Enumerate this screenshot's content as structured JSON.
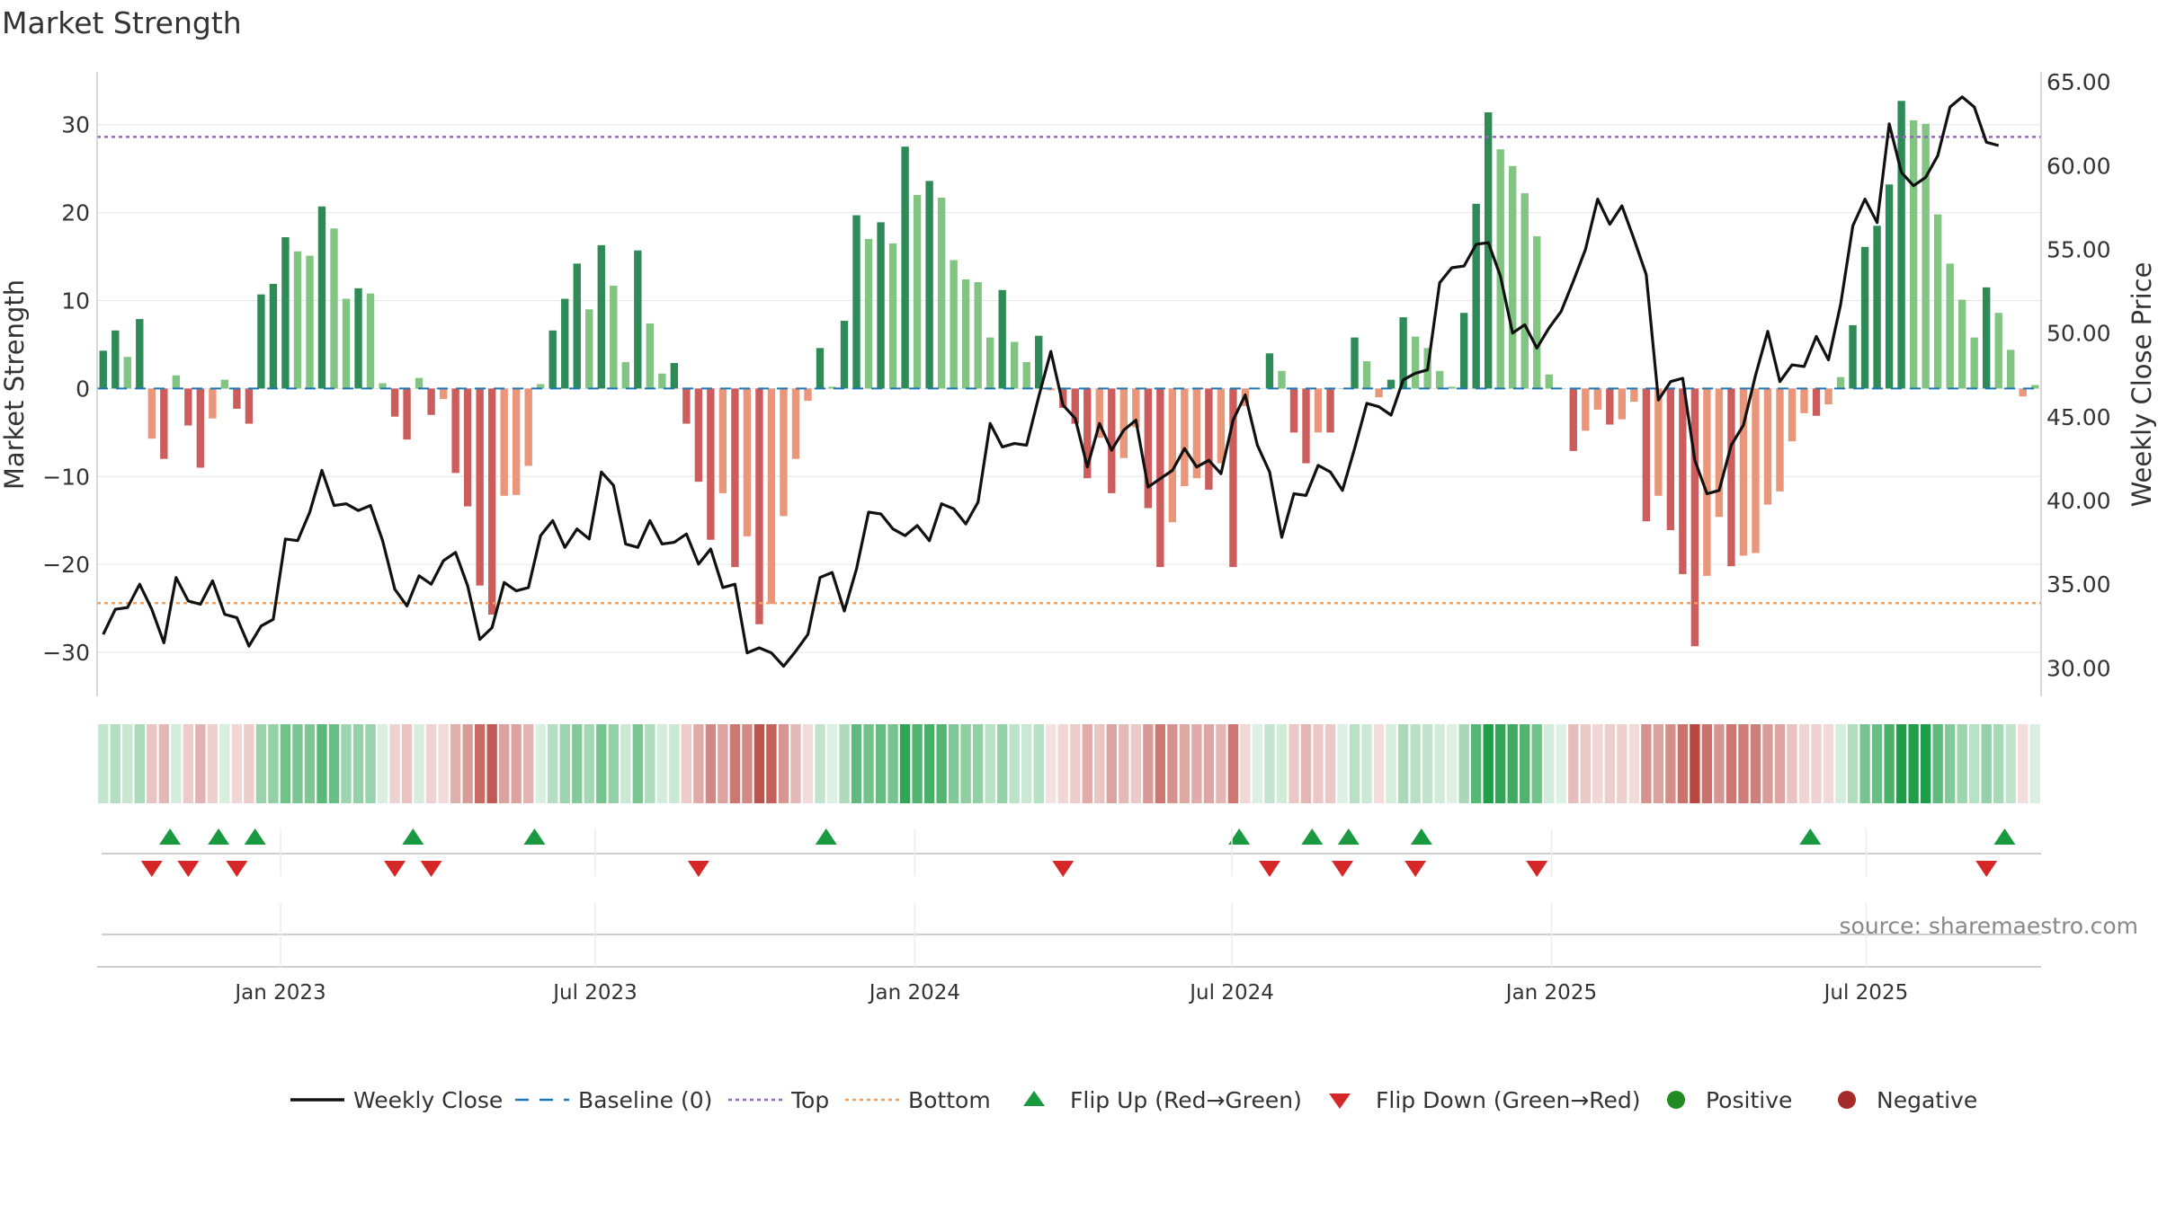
{
  "chart_data": {
    "type": "bar+line",
    "title": "Market Strength",
    "ylabel_left": "Market Strength",
    "ylabel_right": "Weekly Close Price",
    "source": "source: sharemaestro.com",
    "left_axis": {
      "ylim": [
        -35,
        36
      ],
      "ticks": [
        30,
        20,
        10,
        0,
        -10,
        -20,
        -30
      ],
      "tick_labels": [
        "30",
        "20",
        "10",
        "0",
        "−10",
        "−20",
        "−30"
      ]
    },
    "right_axis": {
      "ylim": [
        28.3,
        65.6
      ],
      "ticks": [
        65,
        60,
        55,
        50,
        45,
        40,
        35,
        30
      ],
      "tick_labels": [
        "65.00",
        "60.00",
        "55.00",
        "50.00",
        "45.00",
        "40.00",
        "35.00",
        "30.00"
      ]
    },
    "x_ticks": [
      {
        "label": "Jan 2023",
        "week": 14.6
      },
      {
        "label": "Jul 2023",
        "week": 40.5
      },
      {
        "label": "Jan 2024",
        "week": 66.8
      },
      {
        "label": "Jul 2024",
        "week": 92.9
      },
      {
        "label": "Jan 2025",
        "week": 119.2
      },
      {
        "label": "Jul 2025",
        "week": 145.1
      }
    ],
    "top_threshold": 28.6,
    "bottom_threshold": -24.4,
    "weeks": 158,
    "strength": [
      4.3,
      6.6,
      3.6,
      7.9,
      -5.7,
      -8.0,
      1.5,
      -4.2,
      -9.0,
      -3.4,
      1.0,
      -2.3,
      -4.0,
      10.7,
      11.9,
      17.2,
      15.6,
      15.1,
      20.7,
      18.2,
      10.2,
      11.4,
      10.8,
      0.6,
      -3.2,
      -5.8,
      1.2,
      -3.0,
      -1.2,
      -9.6,
      -13.4,
      -22.4,
      -25.7,
      -12.2,
      -12.1,
      -8.8,
      0.5,
      6.6,
      10.2,
      14.2,
      9.0,
      16.3,
      11.7,
      3.0,
      15.7,
      7.4,
      1.7,
      2.9,
      -4.0,
      -10.6,
      -17.2,
      -11.9,
      -20.3,
      -16.8,
      -26.8,
      -24.5,
      -14.5,
      -8.0,
      -1.4,
      4.6,
      0.2,
      7.7,
      19.7,
      17.0,
      18.9,
      16.5,
      27.5,
      22.0,
      23.6,
      21.7,
      14.6,
      12.4,
      12.1,
      5.8,
      11.2,
      5.3,
      3.0,
      6.0,
      -0.2,
      -2.2,
      -4.0,
      -10.2,
      -5.6,
      -11.9,
      -7.9,
      -4.4,
      -13.6,
      -20.3,
      -15.2,
      -11.1,
      -10.2,
      -11.5,
      -8.5,
      -20.3,
      -2.0,
      0.0,
      4.0,
      2.0,
      -5.0,
      -8.5,
      -5.0,
      -5.0,
      0.0,
      5.8,
      3.1,
      -1.0,
      1.0,
      8.1,
      5.9,
      4.6,
      2.0,
      0.2,
      8.6,
      21.0,
      31.4,
      27.2,
      25.3,
      22.2,
      17.3,
      1.6,
      0.0,
      -7.1,
      -4.8,
      -2.4,
      -4.1,
      -3.5,
      -1.5,
      -15.1,
      -12.2,
      -16.1,
      -21.1,
      -29.3,
      -21.3,
      -14.6,
      -20.2,
      -19.0,
      -18.7,
      -13.2,
      -11.7,
      -6.0,
      -2.8,
      -3.1,
      -1.8,
      1.3,
      7.2,
      16.1,
      18.5,
      23.2,
      32.7,
      30.5,
      30.1,
      19.8,
      14.2,
      10.1,
      5.8,
      11.5,
      8.6,
      4.4,
      -0.9,
      0.4
    ],
    "weekly_close": [
      32.0,
      33.5,
      33.6,
      35.0,
      33.5,
      31.5,
      35.4,
      34.0,
      33.8,
      35.2,
      33.2,
      33.0,
      31.3,
      32.5,
      32.9,
      37.7,
      37.6,
      39.3,
      41.8,
      39.7,
      39.8,
      39.4,
      39.7,
      37.6,
      34.7,
      33.7,
      35.5,
      35.0,
      36.4,
      36.9,
      34.9,
      31.7,
      32.4,
      35.1,
      34.6,
      34.8,
      37.9,
      38.8,
      37.2,
      38.3,
      37.7,
      41.7,
      40.9,
      37.4,
      37.2,
      38.8,
      37.4,
      37.5,
      38.0,
      36.2,
      37.1,
      34.8,
      35.0,
      30.9,
      31.2,
      30.9,
      30.1,
      31.0,
      32.0,
      35.4,
      35.7,
      33.4,
      35.9,
      39.3,
      39.2,
      38.3,
      37.9,
      38.5,
      37.6,
      39.8,
      39.5,
      38.6,
      39.9,
      44.6,
      43.2,
      43.4,
      43.3,
      46.2,
      48.9,
      45.7,
      44.9,
      42.0,
      44.6,
      43.0,
      44.2,
      44.8,
      40.8,
      41.3,
      41.8,
      43.1,
      42.0,
      42.4,
      41.6,
      44.8,
      46.3,
      43.3,
      41.7,
      37.8,
      40.4,
      40.3,
      42.1,
      41.7,
      40.6,
      43.1,
      45.8,
      45.6,
      45.1,
      47.2,
      47.6,
      47.8,
      53.0,
      53.9,
      54.0,
      55.3,
      55.4,
      53.4,
      50.0,
      50.5,
      49.1,
      50.3,
      51.3,
      53.1,
      55.0,
      58.0,
      56.5,
      57.6,
      55.6,
      53.5,
      46.0,
      47.1,
      47.3,
      42.4,
      40.4,
      40.6,
      43.3,
      44.5,
      47.5,
      50.1,
      47.1,
      48.1,
      48.0,
      49.8,
      48.4,
      51.7,
      56.4,
      58.0,
      56.6,
      62.5,
      59.6,
      58.8,
      59.3,
      60.6,
      63.5,
      64.1,
      63.5,
      61.4,
      61.2
    ],
    "heat_strip": "weekly strength shading (green = positive, red = negative)",
    "flip_up_weeks": [
      5.5,
      9.5,
      12.5,
      25.5,
      35.5,
      59.5,
      93.5,
      99.5,
      102.5,
      108.5,
      140.5,
      156.5
    ],
    "flip_down_weeks": [
      4,
      7,
      11,
      24,
      27,
      49,
      79,
      96,
      102,
      108,
      118,
      155
    ],
    "legend": [
      {
        "label": "Weekly Close",
        "kind": "line",
        "color": "#111111"
      },
      {
        "label": "Baseline (0)",
        "kind": "dash",
        "color": "#1f77b4"
      },
      {
        "label": "Top",
        "kind": "dot",
        "color": "#9467bd"
      },
      {
        "label": "Bottom",
        "kind": "dot",
        "color": "#f0a060"
      },
      {
        "label": "Flip Up (Red→Green)",
        "kind": "tri-up",
        "color": "#1a9a40"
      },
      {
        "label": "Flip Down (Green→Red)",
        "kind": "tri-down",
        "color": "#d62728"
      },
      {
        "label": "Positive",
        "kind": "circle",
        "color": "#228b22"
      },
      {
        "label": "Negative",
        "kind": "circle",
        "color": "#a52a2a"
      }
    ],
    "colors": {
      "strong_positive": "#2e8b57",
      "weak_positive": "#82c482",
      "strong_negative": "#cd5c5c",
      "weak_negative": "#e9967a",
      "price_line": "#111111",
      "baseline": "#1f77b4",
      "top": "#9467bd",
      "bottom": "#f0a060"
    }
  }
}
